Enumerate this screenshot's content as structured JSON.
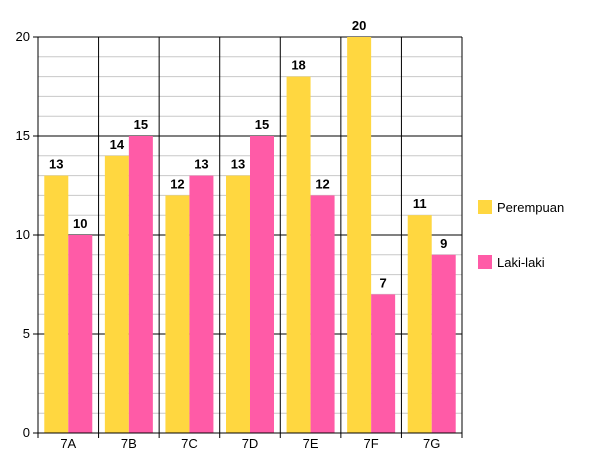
{
  "chart_data": {
    "type": "bar",
    "categories": [
      "7A",
      "7B",
      "7C",
      "7D",
      "7E",
      "7F",
      "7G"
    ],
    "series": [
      {
        "name": "Perempuan",
        "color": "#FFD740",
        "values": [
          13,
          14,
          12,
          13,
          18,
          20,
          11
        ]
      },
      {
        "name": "Laki-laki",
        "color": "#FF5BA7",
        "values": [
          10,
          15,
          13,
          15,
          12,
          7,
          9
        ]
      }
    ],
    "ylim": [
      0,
      20
    ],
    "yticks": [
      "0",
      "5",
      "10",
      "15",
      "20"
    ],
    "grid": true,
    "legend_position": "right"
  }
}
